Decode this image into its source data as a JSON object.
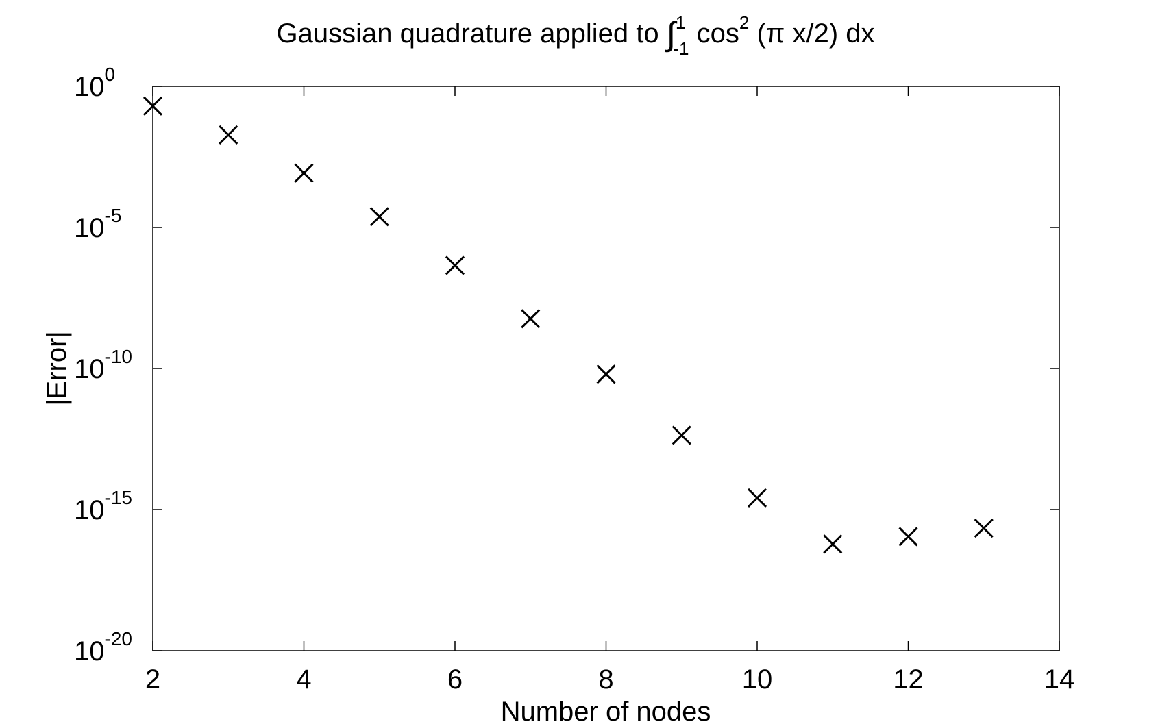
{
  "chart_data": {
    "type": "scatter",
    "title": {
      "main": "Gaussian quadrature applied to ",
      "integral_symbol": "∫",
      "upper_limit": "1",
      "lower_limit": "-1",
      "func": " cos",
      "exponent": "2",
      "rest": " (π x/2) dx"
    },
    "xlabel": "Number of nodes",
    "ylabel": "|Error|",
    "xlim": [
      2,
      14
    ],
    "ylim_exponent": [
      -20,
      0
    ],
    "y_scale": "log",
    "grid": false,
    "marker": "x",
    "marker_color": "#000000",
    "x_ticks": [
      {
        "value": 2,
        "label": "2"
      },
      {
        "value": 4,
        "label": "4"
      },
      {
        "value": 6,
        "label": "6"
      },
      {
        "value": 8,
        "label": "8"
      },
      {
        "value": 10,
        "label": "10"
      },
      {
        "value": 12,
        "label": "12"
      },
      {
        "value": 14,
        "label": "14"
      }
    ],
    "y_ticks": [
      {
        "exponent": 0,
        "base": "10",
        "sup": "0"
      },
      {
        "exponent": -5,
        "base": "10",
        "sup": "-5"
      },
      {
        "exponent": -10,
        "base": "10",
        "sup": "-10"
      },
      {
        "exponent": -15,
        "base": "10",
        "sup": "-15"
      },
      {
        "exponent": -20,
        "base": "10",
        "sup": "-20"
      }
    ],
    "series": [
      {
        "x": [
          2,
          3,
          4,
          5,
          6,
          7,
          8,
          9,
          10,
          11,
          12,
          13
        ],
        "y": [
          0.2,
          0.019,
          0.00084,
          2.4e-05,
          4.5e-07,
          5.8e-09,
          6.3e-11,
          4.3e-13,
          2.6e-15,
          6e-17,
          1.1e-16,
          2.2e-16
        ]
      }
    ]
  }
}
